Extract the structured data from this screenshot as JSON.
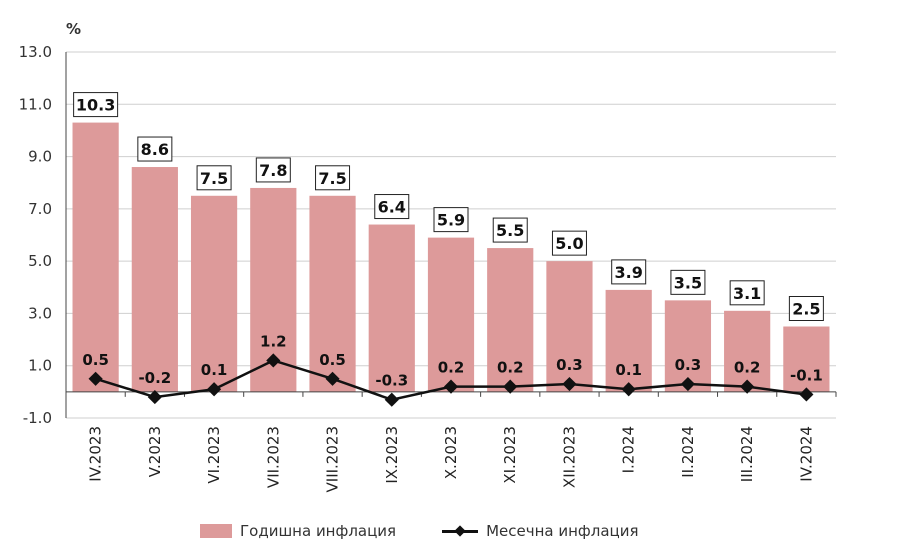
{
  "chart_data": {
    "type": "bar",
    "unit_label": "%",
    "categories": [
      "IV.2023",
      "V.2023",
      "VI.2023",
      "VII.2023",
      "VIII.2023",
      "IX.2023",
      "X.2023",
      "XI.2023",
      "XII.2023",
      "I.2024",
      "II.2024",
      "III.2024",
      "IV.2024"
    ],
    "series": [
      {
        "name": "Годишна инфлация",
        "type": "bar",
        "color": "#dd9a9a",
        "values": [
          10.3,
          8.6,
          7.5,
          7.8,
          7.5,
          6.4,
          5.9,
          5.5,
          5.0,
          3.9,
          3.5,
          3.1,
          2.5
        ],
        "labels": [
          "10.3",
          "8.6",
          "7.5",
          "7.8",
          "7.5",
          "6.4",
          "5.9",
          "5.5",
          "5.0",
          "3.9",
          "3.5",
          "3.1",
          "2.5"
        ]
      },
      {
        "name": "Месечна инфлация",
        "type": "line",
        "color": "#111111",
        "values": [
          0.5,
          -0.2,
          0.1,
          1.2,
          0.5,
          -0.3,
          0.2,
          0.2,
          0.3,
          0.1,
          0.3,
          0.2,
          -0.1
        ],
        "labels": [
          "0.5",
          "-0.2",
          "0.1",
          "1.2",
          "0.5",
          "-0.3",
          "0.2",
          "0.2",
          "0.3",
          "0.1",
          "0.3",
          "0.2",
          "-0.1"
        ]
      }
    ],
    "yticks": [
      "13.0",
      "11.0",
      "9.0",
      "7.0",
      "5.0",
      "3.0",
      "1.0",
      "-1.0"
    ],
    "ylim": [
      -1.0,
      13.0
    ],
    "grid": true,
    "legend_position": "bottom"
  }
}
